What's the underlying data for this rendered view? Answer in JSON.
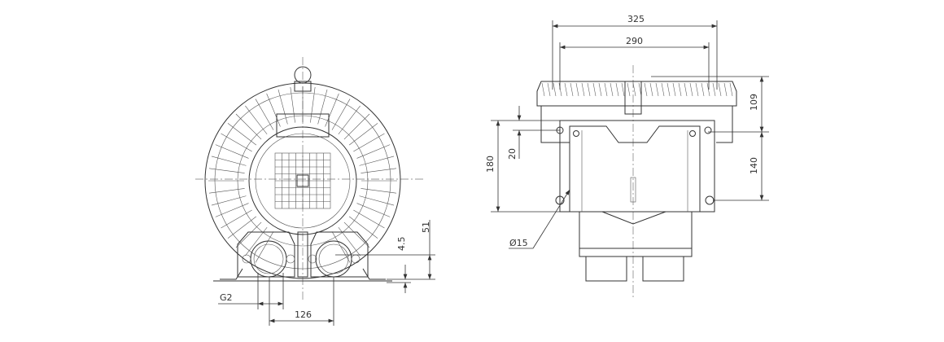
{
  "front_view": {
    "dimensions": {
      "port_thread": "G2",
      "port_spacing": "126",
      "foot_offset": "4.5",
      "port_height": "51"
    }
  },
  "side_view": {
    "dimensions": {
      "overall_width": "325",
      "flange_width": "290",
      "top_to_hole": "109",
      "hole_spacing_vertical": "140",
      "base_height": "180",
      "hole_offset": "20",
      "hole_diameter": "Ø15"
    }
  }
}
